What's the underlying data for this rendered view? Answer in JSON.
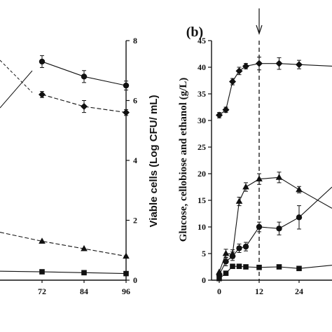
{
  "colors": {
    "ink": "#111111",
    "background": "#ffffff"
  },
  "chart_data": [
    {
      "type": "line",
      "panel_label": "",
      "x_ticks": [
        "72",
        "84",
        "96"
      ],
      "xlim": [
        40,
        96
      ],
      "y_right_label": "Viable cells (Log CFU/ mL)",
      "y_right_ticks": [
        "0",
        "2",
        "4",
        "6",
        "8"
      ],
      "ylim": [
        0,
        8
      ],
      "series": [
        {
          "marker": "circle",
          "style": "solid",
          "x": [
            72,
            84,
            96
          ],
          "y": [
            7.3,
            6.8,
            6.5
          ],
          "err": [
            0.2,
            0.2,
            0.15
          ]
        },
        {
          "marker": "diamond",
          "style": "dashed",
          "x": [
            72,
            84,
            96
          ],
          "y": [
            6.2,
            5.8,
            5.6
          ],
          "err": [
            0.1,
            0.2,
            0.1
          ]
        },
        {
          "marker": "triangle",
          "style": "dashed",
          "x": [
            40,
            72,
            84,
            96
          ],
          "y": [
            1.6,
            1.3,
            1.05,
            0.8
          ],
          "err": [
            0,
            0,
            0,
            0
          ]
        },
        {
          "marker": "square",
          "style": "solid",
          "x": [
            40,
            72,
            84,
            96
          ],
          "y": [
            0.3,
            0.28,
            0.25,
            0.22
          ],
          "err": [
            0,
            0,
            0,
            0
          ]
        }
      ]
    },
    {
      "type": "line",
      "panel_label": "(b)",
      "x_ticks": [
        "0",
        "12",
        "24"
      ],
      "xlim": [
        0,
        38
      ],
      "y_left_label": "Glucose, cellobiose and ethanol (g/L)",
      "y_left_ticks": [
        "0",
        "5",
        "10",
        "15",
        "20",
        "25",
        "30",
        "35",
        "40",
        "45"
      ],
      "ylim": [
        0,
        45
      ],
      "vline_x": 12,
      "arrow_x": 12,
      "series": [
        {
          "marker": "diamond",
          "style": "solid",
          "x": [
            0,
            2,
            4,
            6,
            8,
            12,
            18,
            24,
            38
          ],
          "y": [
            31,
            32,
            37.3,
            39.3,
            40.2,
            40.7,
            40.7,
            40.5,
            40.2
          ],
          "err": [
            0.5,
            0.5,
            0.6,
            0.7,
            0.5,
            1.2,
            1.1,
            0.8,
            0
          ]
        },
        {
          "marker": "triangle",
          "style": "solid",
          "x": [
            0,
            2,
            4,
            6,
            8,
            12,
            18,
            24,
            38
          ],
          "y": [
            1.5,
            5,
            4.9,
            14.8,
            17.5,
            19,
            19.3,
            17,
            13.5
          ],
          "err": [
            0,
            0.8,
            0.8,
            0.8,
            0.8,
            1,
            1,
            0.6,
            0
          ]
        },
        {
          "marker": "circle",
          "style": "solid",
          "x": [
            0,
            2,
            4,
            6,
            8,
            12,
            18,
            24,
            38
          ],
          "y": [
            1,
            3.5,
            4.5,
            6,
            6.3,
            10,
            9.7,
            11.8,
            17.5
          ],
          "err": [
            0,
            0.8,
            0.8,
            0.8,
            0.8,
            0.9,
            1.2,
            2.2,
            0
          ]
        },
        {
          "marker": "square",
          "style": "solid",
          "x": [
            0,
            2,
            4,
            6,
            8,
            12,
            18,
            24,
            38
          ],
          "y": [
            0.3,
            1.3,
            2.6,
            2.6,
            2.5,
            2.4,
            2.5,
            2.2,
            2.8
          ],
          "err": [
            0,
            0,
            0,
            0,
            0,
            0,
            0,
            0,
            0
          ]
        }
      ]
    }
  ]
}
